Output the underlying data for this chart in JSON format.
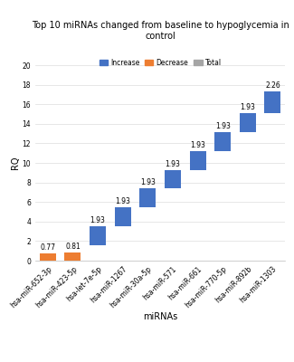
{
  "title": "Top 10 miRNAs changed from baseline to hypoglycemia in control",
  "xlabel": "miRNAs",
  "ylabel": "RQ",
  "ylim": [
    0,
    20
  ],
  "yticks": [
    0,
    2,
    4,
    6,
    8,
    10,
    12,
    14,
    16,
    18,
    20
  ],
  "categories": [
    "hsa-miR-652-3p",
    "hsa-miR-423-5p",
    "hsa-let-7e-5p",
    "hsa-miR-1267",
    "hsa-miR-30a-5p",
    "hsa-miR-571",
    "hsa-miR-661",
    "hsa-miR-770-5p",
    "hsa-miR-892b",
    "hsa-miR-1303"
  ],
  "values": [
    0.77,
    0.81,
    1.93,
    1.93,
    1.93,
    1.93,
    1.93,
    1.93,
    1.93,
    2.26
  ],
  "bar_types": [
    "decrease",
    "decrease",
    "increase",
    "increase",
    "increase",
    "increase",
    "increase",
    "increase",
    "increase",
    "increase"
  ],
  "color_increase": "#4472C4",
  "color_decrease": "#ED7D31",
  "color_total": "#A5A5A5",
  "bar_width": 0.65,
  "legend_labels": [
    "Increase",
    "Decrease",
    "Total"
  ],
  "title_fontsize": 7.0,
  "label_fontsize": 7,
  "tick_fontsize": 5.5,
  "value_fontsize": 5.5,
  "background_color": "#FFFFFF",
  "grid_color": "#DDDDDD"
}
